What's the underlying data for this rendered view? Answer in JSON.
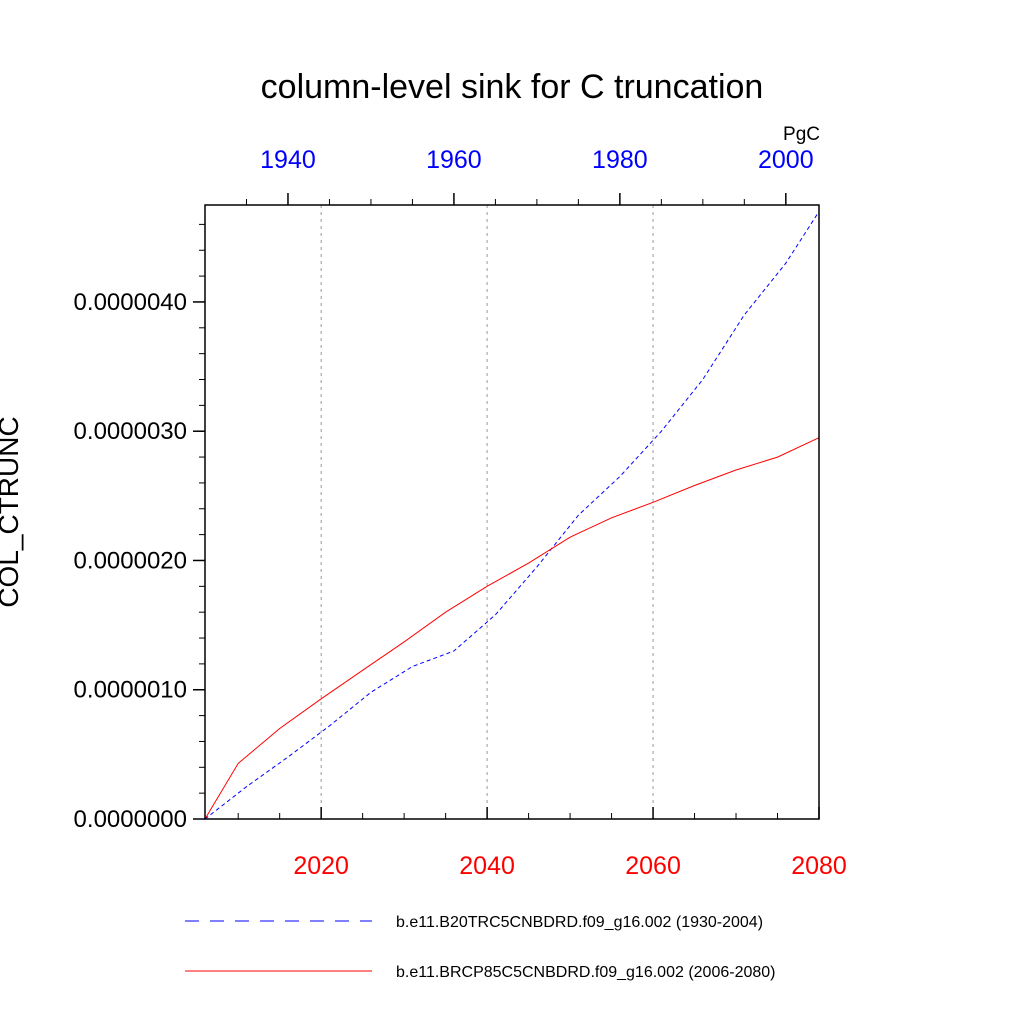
{
  "chart_data": {
    "type": "line",
    "title": "column-level sink for C truncation",
    "units": "PgC",
    "ylabel": "COL_CTRUNC",
    "ylim": [
      0,
      4.75e-06
    ],
    "yticks": [
      "0.0000000",
      "0.0000010",
      "0.0000020",
      "0.0000030",
      "0.0000040"
    ],
    "ytick_values": [
      0,
      1e-06,
      2e-06,
      3e-06,
      4e-06
    ],
    "grid": "vertical dashed at bottom-axis major ticks",
    "axes": {
      "bottom": {
        "range": [
          2006,
          2080
        ],
        "ticks": [
          2020,
          2040,
          2060,
          2080
        ],
        "tick_labels": [
          "2020",
          "2040",
          "2060",
          "2080"
        ],
        "color": "#ff0000"
      },
      "top": {
        "range": [
          1930,
          2004
        ],
        "ticks": [
          1940,
          1960,
          1980,
          2000
        ],
        "tick_labels": [
          "1940",
          "1960",
          "1980",
          "2000"
        ],
        "color": "#0000ff"
      }
    },
    "legend_position": "bottom",
    "series": [
      {
        "name": "b.e11.B20TRC5CNBDRD.f09_g16.002 (1930-2004)",
        "axis": "top",
        "color": "#0000ff",
        "style": "dashed",
        "x": [
          1930,
          1935,
          1940,
          1945,
          1950,
          1955,
          1960,
          1965,
          1970,
          1975,
          1980,
          1985,
          1990,
          1995,
          2000,
          2004
        ],
        "y": [
          0,
          2.5e-07,
          4.8e-07,
          7.2e-07,
          9.8e-07,
          1.18e-06,
          1.3e-06,
          1.58e-06,
          1.95e-06,
          2.35e-06,
          2.65e-06,
          3e-06,
          3.4e-06,
          3.9e-06,
          4.3e-06,
          4.7e-06
        ]
      },
      {
        "name": "b.e11.BRCP85C5CNBDRD.f09_g16.002 (2006-2080)",
        "axis": "bottom",
        "color": "#ff0000",
        "style": "solid",
        "x": [
          2006,
          2010,
          2015,
          2020,
          2025,
          2030,
          2035,
          2040,
          2045,
          2050,
          2055,
          2060,
          2065,
          2070,
          2075,
          2080
        ],
        "y": [
          0,
          4.3e-07,
          7e-07,
          9.3e-07,
          1.15e-06,
          1.37e-06,
          1.6e-06,
          1.8e-06,
          1.98e-06,
          2.18e-06,
          2.33e-06,
          2.45e-06,
          2.58e-06,
          2.7e-06,
          2.8e-06,
          2.95e-06
        ]
      }
    ]
  }
}
